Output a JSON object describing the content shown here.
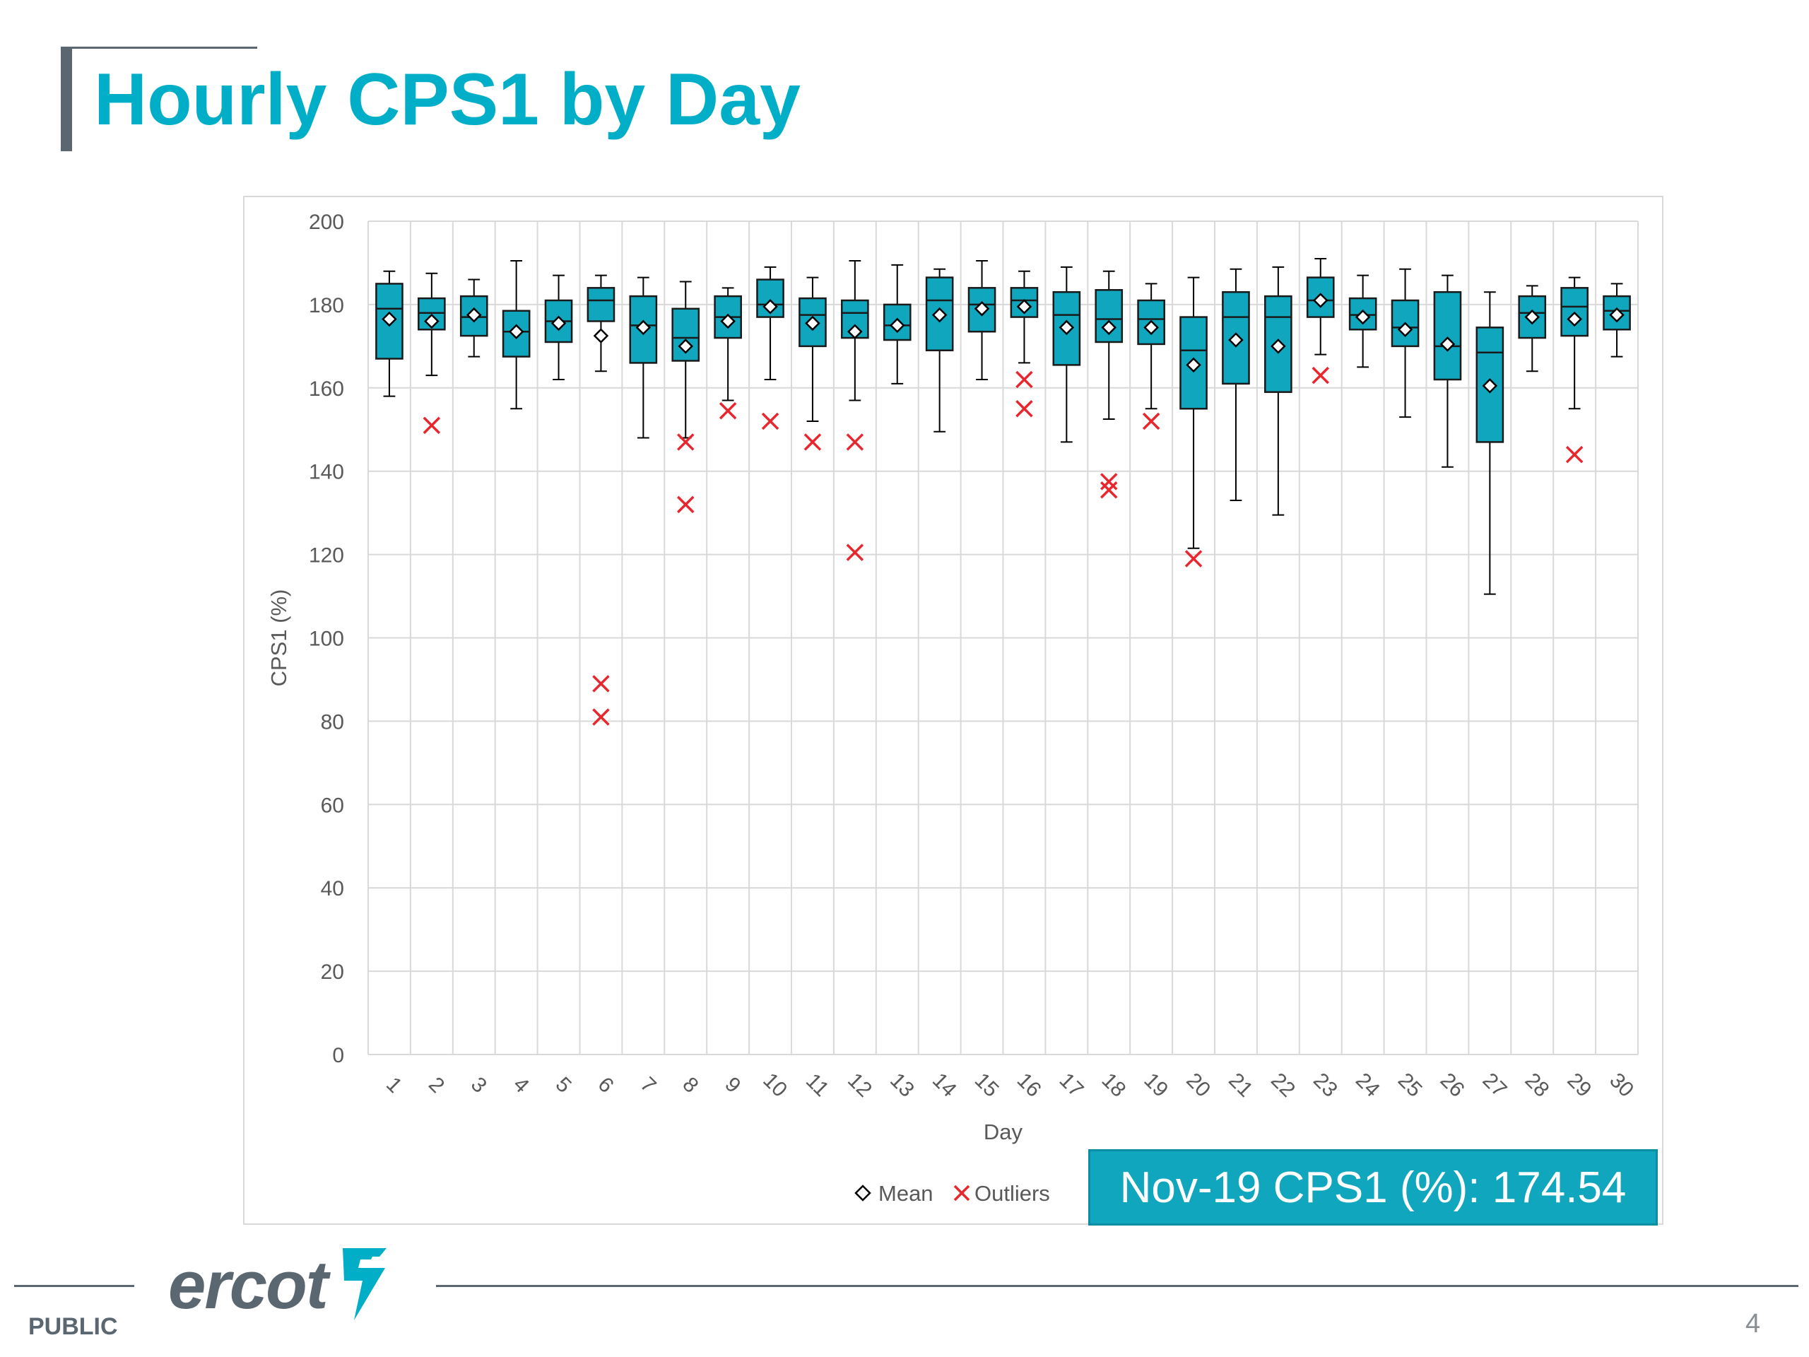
{
  "slide": {
    "title": "Hourly CPS1 by Day",
    "footer_label": "PUBLIC",
    "page_number": "4",
    "logo_text": "ercot",
    "callout": "Nov-19 CPS1 (%): 174.54"
  },
  "colors": {
    "title": "#00aec7",
    "box_fill": "#10a6bd",
    "outlier": "#e8262d",
    "grid": "#d9d9d9",
    "footer": "#5b6770"
  },
  "chart_data": {
    "type": "box",
    "xlabel": "Day",
    "ylabel": "CPS1 (%)",
    "ylim": [
      0,
      200
    ],
    "yticks": [
      0,
      20,
      40,
      60,
      80,
      100,
      120,
      140,
      160,
      180,
      200
    ],
    "categories": [
      "1",
      "2",
      "3",
      "4",
      "5",
      "6",
      "7",
      "8",
      "9",
      "10",
      "11",
      "12",
      "13",
      "14",
      "15",
      "16",
      "17",
      "18",
      "19",
      "20",
      "21",
      "22",
      "23",
      "24",
      "25",
      "26",
      "27",
      "28",
      "29",
      "30"
    ],
    "legend": {
      "mean": "Mean",
      "outliers": "Outliers",
      "position": "bottom"
    },
    "grid": true,
    "boxes": [
      {
        "min": 158,
        "q1": 167,
        "median": 179,
        "q3": 185,
        "max": 188,
        "mean": 176.5
      },
      {
        "min": 163,
        "q1": 174,
        "median": 178,
        "q3": 181.5,
        "max": 187.5,
        "mean": 176
      },
      {
        "min": 167.5,
        "q1": 172.5,
        "median": 177,
        "q3": 182,
        "max": 186,
        "mean": 177.5
      },
      {
        "min": 155,
        "q1": 167.5,
        "median": 173.5,
        "q3": 178.5,
        "max": 190.5,
        "mean": 173.5
      },
      {
        "min": 162,
        "q1": 171,
        "median": 176,
        "q3": 181,
        "max": 187,
        "mean": 175.5
      },
      {
        "min": 164,
        "q1": 176,
        "median": 181,
        "q3": 184,
        "max": 187,
        "mean": 172.5
      },
      {
        "min": 148,
        "q1": 166,
        "median": 175,
        "q3": 182,
        "max": 186.5,
        "mean": 174.5
      },
      {
        "min": 148,
        "q1": 166.5,
        "median": 172,
        "q3": 179,
        "max": 185.5,
        "mean": 170
      },
      {
        "min": 157,
        "q1": 172,
        "median": 177,
        "q3": 182,
        "max": 184,
        "mean": 176
      },
      {
        "min": 162,
        "q1": 177,
        "median": 180,
        "q3": 186,
        "max": 189,
        "mean": 179.5
      },
      {
        "min": 152,
        "q1": 170,
        "median": 177.5,
        "q3": 181.5,
        "max": 186.5,
        "mean": 175.5
      },
      {
        "min": 157,
        "q1": 172,
        "median": 178,
        "q3": 181,
        "max": 190.5,
        "mean": 173.5
      },
      {
        "min": 161,
        "q1": 171.5,
        "median": 175,
        "q3": 180,
        "max": 189.5,
        "mean": 175
      },
      {
        "min": 149.5,
        "q1": 169,
        "median": 181,
        "q3": 186.5,
        "max": 188.5,
        "mean": 177.5
      },
      {
        "min": 162,
        "q1": 173.5,
        "median": 180,
        "q3": 184,
        "max": 190.5,
        "mean": 179
      },
      {
        "min": 166,
        "q1": 177,
        "median": 181,
        "q3": 184,
        "max": 188,
        "mean": 179.5
      },
      {
        "min": 147,
        "q1": 165.5,
        "median": 177.5,
        "q3": 183,
        "max": 189,
        "mean": 174.5
      },
      {
        "min": 152.5,
        "q1": 171,
        "median": 176.5,
        "q3": 183.5,
        "max": 188,
        "mean": 174.5
      },
      {
        "min": 155,
        "q1": 170.5,
        "median": 176.5,
        "q3": 181,
        "max": 185,
        "mean": 174.5
      },
      {
        "min": 121.5,
        "q1": 155,
        "median": 169,
        "q3": 177,
        "max": 186.5,
        "mean": 165.5
      },
      {
        "min": 133,
        "q1": 161,
        "median": 177,
        "q3": 183,
        "max": 188.5,
        "mean": 171.5
      },
      {
        "min": 129.5,
        "q1": 159,
        "median": 177,
        "q3": 182,
        "max": 189,
        "mean": 170
      },
      {
        "min": 168,
        "q1": 177,
        "median": 181,
        "q3": 186.5,
        "max": 191,
        "mean": 181
      },
      {
        "min": 165,
        "q1": 174,
        "median": 177.5,
        "q3": 181.5,
        "max": 187,
        "mean": 177
      },
      {
        "min": 153,
        "q1": 170,
        "median": 174.5,
        "q3": 181,
        "max": 188.5,
        "mean": 174
      },
      {
        "min": 141,
        "q1": 162,
        "median": 170,
        "q3": 183,
        "max": 187,
        "mean": 170.5
      },
      {
        "min": 110.5,
        "q1": 147,
        "median": 168.5,
        "q3": 174.5,
        "max": 183,
        "mean": 160.5
      },
      {
        "min": 164,
        "q1": 172,
        "median": 178,
        "q3": 182,
        "max": 184.5,
        "mean": 177
      },
      {
        "min": 155,
        "q1": 172.5,
        "median": 179.5,
        "q3": 184,
        "max": 186.5,
        "mean": 176.5
      },
      {
        "min": 167.5,
        "q1": 174,
        "median": 178.5,
        "q3": 182,
        "max": 185,
        "mean": 177.5
      }
    ],
    "outliers": [
      {
        "day": "2",
        "value": 151
      },
      {
        "day": "6",
        "value": 89
      },
      {
        "day": "6",
        "value": 81
      },
      {
        "day": "8",
        "value": 147
      },
      {
        "day": "8",
        "value": 132
      },
      {
        "day": "9",
        "value": 154.5
      },
      {
        "day": "10",
        "value": 152
      },
      {
        "day": "11",
        "value": 147
      },
      {
        "day": "12",
        "value": 147
      },
      {
        "day": "12",
        "value": 120.5
      },
      {
        "day": "16",
        "value": 162
      },
      {
        "day": "16",
        "value": 155
      },
      {
        "day": "18",
        "value": 137.5
      },
      {
        "day": "18",
        "value": 135.5
      },
      {
        "day": "19",
        "value": 152
      },
      {
        "day": "20",
        "value": 119
      },
      {
        "day": "23",
        "value": 163
      },
      {
        "day": "29",
        "value": 144
      }
    ]
  }
}
